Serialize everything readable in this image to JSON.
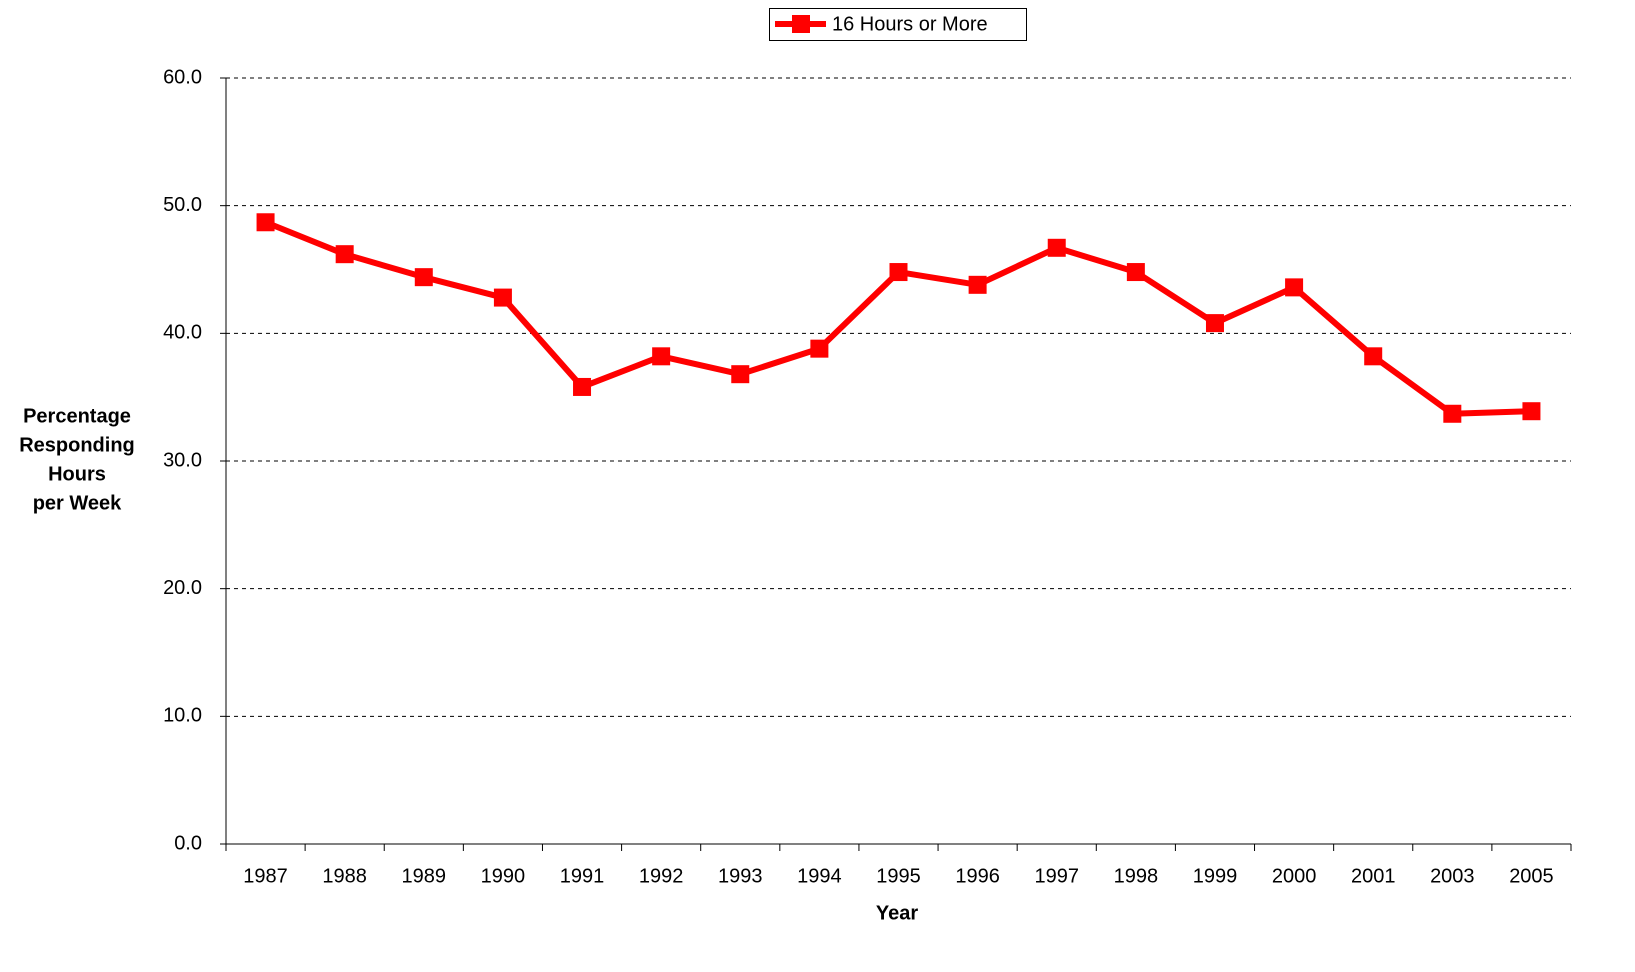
{
  "chart_data": {
    "type": "line",
    "categories": [
      "1987",
      "1988",
      "1989",
      "1990",
      "1991",
      "1992",
      "1993",
      "1994",
      "1995",
      "1996",
      "1997",
      "1998",
      "1999",
      "2000",
      "2001",
      "2003",
      "2005"
    ],
    "series": [
      {
        "name": "16 Hours or More",
        "color": "#ff0000",
        "values": [
          48.7,
          46.2,
          44.4,
          42.8,
          35.8,
          38.2,
          36.8,
          38.8,
          44.8,
          43.8,
          46.7,
          44.8,
          40.8,
          43.6,
          38.2,
          33.7,
          33.9
        ]
      }
    ],
    "x_label": "Year",
    "y_label": [
      "Percentage",
      "Responding",
      "Hours",
      "per Week"
    ],
    "ylim": [
      0,
      60
    ],
    "yticks": [
      {
        "value": 0,
        "label": "0.0"
      },
      {
        "value": 10,
        "label": "10.0"
      },
      {
        "value": 20,
        "label": "20.0"
      },
      {
        "value": 30,
        "label": "30.0"
      },
      {
        "value": 40,
        "label": "40.0"
      },
      {
        "value": 50,
        "label": "50.0"
      },
      {
        "value": 60,
        "label": "60.0"
      }
    ],
    "grid": true,
    "legend": "top"
  }
}
